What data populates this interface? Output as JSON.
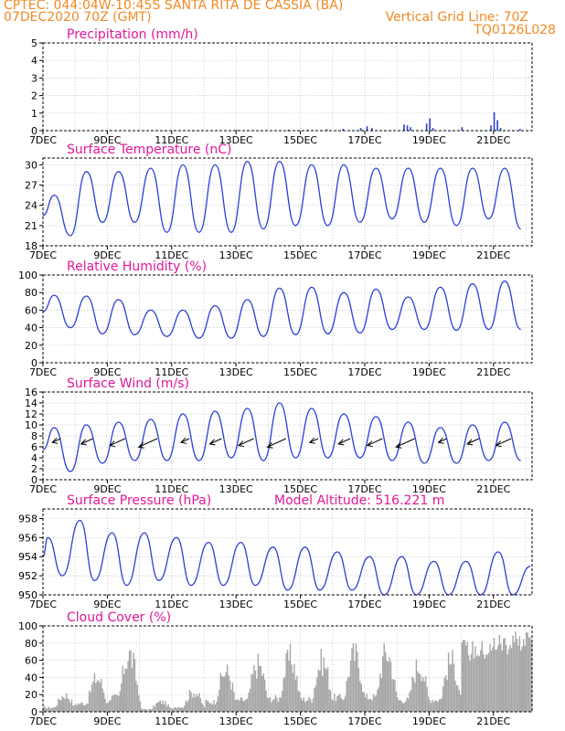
{
  "header": {
    "line1": "CPTEC:   044:04W-10:45S   SANTA RITA DE CASSIA (BA)",
    "line2_left": "07DEC2020 70Z (GMT)",
    "line2_right": "Vertical Grid Line: 70Z",
    "line3_right": "TQ0126L028"
  },
  "colors": {
    "header": "#f08a24",
    "title": "#e0189a",
    "line": "#2b3fd6",
    "cloud": "#a6a6a6",
    "wind_arrow": "#000000"
  },
  "chart_data": [
    {
      "type": "bar",
      "title": "Precipitation (mm/h)",
      "xlabel_ticks": [
        "7DEC",
        "9DEC",
        "11DEC",
        "13DEC",
        "15DEC",
        "17DEC",
        "19DEC",
        "21DEC"
      ],
      "x_range_days": [
        7,
        22.2
      ],
      "ylim": [
        0,
        5
      ],
      "yticks": [
        0,
        1,
        2,
        3,
        4,
        5
      ],
      "events": [
        {
          "day": 13.0,
          "value": 0.05
        },
        {
          "day": 14.6,
          "value": 0.06
        },
        {
          "day": 15.2,
          "value": 0.05
        },
        {
          "day": 15.8,
          "value": 0.08
        },
        {
          "day": 16.3,
          "value": 0.1
        },
        {
          "day": 16.85,
          "value": 0.15
        },
        {
          "day": 17.05,
          "value": 0.25
        },
        {
          "day": 17.2,
          "value": 0.15
        },
        {
          "day": 18.2,
          "value": 0.35
        },
        {
          "day": 18.3,
          "value": 0.3
        },
        {
          "day": 18.4,
          "value": 0.2
        },
        {
          "day": 18.9,
          "value": 0.4
        },
        {
          "day": 19.0,
          "value": 0.7
        },
        {
          "day": 19.1,
          "value": 0.15
        },
        {
          "day": 20.0,
          "value": 0.2
        },
        {
          "day": 20.9,
          "value": 0.3
        },
        {
          "day": 21.0,
          "value": 1.05
        },
        {
          "day": 21.1,
          "value": 0.6
        },
        {
          "day": 21.2,
          "value": 0.15
        },
        {
          "day": 21.8,
          "value": 0.1
        }
      ]
    },
    {
      "type": "line",
      "title": "Surface Temperature (nC)",
      "xlabel_ticks": [
        "7DEC",
        "9DEC",
        "11DEC",
        "13DEC",
        "15DEC",
        "17DEC",
        "19DEC",
        "21DEC"
      ],
      "x_range_days": [
        7,
        22.2
      ],
      "ylim": [
        18,
        31
      ],
      "yticks": [
        18,
        21,
        24,
        27,
        30
      ],
      "daily_min": [
        19.5,
        21.5,
        21.5,
        20.0,
        20.0,
        20.0,
        20.5,
        21.0,
        21.0,
        21.5,
        22.0,
        21.5,
        21.0,
        22.0,
        20.5
      ],
      "daily_max": [
        25.5,
        29.0,
        29.0,
        29.5,
        30.0,
        30.0,
        30.5,
        30.5,
        30.0,
        30.0,
        29.5,
        29.5,
        29.5,
        29.5,
        29.5,
        27.0
      ]
    },
    {
      "type": "line",
      "title": "Relative Humidity (%)",
      "xlabel_ticks": [
        "7DEC",
        "9DEC",
        "11DEC",
        "13DEC",
        "15DEC",
        "17DEC",
        "19DEC",
        "21DEC"
      ],
      "x_range_days": [
        7,
        22.2
      ],
      "ylim": [
        0,
        100
      ],
      "yticks": [
        0,
        20,
        40,
        60,
        80,
        100
      ],
      "daily_min": [
        40,
        33,
        32,
        30,
        28,
        28,
        30,
        32,
        33,
        34,
        38,
        38,
        37,
        38,
        38
      ],
      "daily_max": [
        77,
        76,
        72,
        60,
        60,
        65,
        72,
        85,
        86,
        80,
        84,
        75,
        86,
        90,
        93,
        60
      ]
    },
    {
      "type": "line",
      "title": "Surface Wind (m/s)",
      "xlabel_ticks": [
        "7DEC",
        "9DEC",
        "11DEC",
        "13DEC",
        "15DEC",
        "17DEC",
        "19DEC",
        "21DEC"
      ],
      "x_range_days": [
        7,
        22.2
      ],
      "ylim": [
        0,
        16
      ],
      "yticks": [
        0,
        2,
        4,
        6,
        8,
        10,
        12,
        14,
        16
      ],
      "daily_min": [
        1.5,
        3.0,
        3.5,
        3.5,
        3.5,
        4.0,
        3.5,
        4.0,
        4.0,
        4.0,
        3.5,
        3.0,
        3.0,
        3.5,
        3.5
      ],
      "daily_max": [
        9.5,
        10.0,
        10.5,
        11.0,
        12.0,
        12.5,
        13.0,
        14.0,
        13.0,
        12.0,
        11.5,
        10.5,
        9.5,
        10.0,
        10.5,
        9.0
      ],
      "arrow_direction": "toward-west-southwest"
    },
    {
      "type": "line",
      "title": "Surface Pressure (hPa)",
      "annotation": "Model Altitude: 516.221 m",
      "xlabel_ticks": [
        "7DEC",
        "9DEC",
        "11DEC",
        "13DEC",
        "15DEC",
        "17DEC",
        "19DEC",
        "21DEC"
      ],
      "x_range_days": [
        7,
        22.2
      ],
      "ylim": [
        950,
        959
      ],
      "yticks": [
        950,
        952,
        954,
        956,
        958
      ],
      "daily_max": [
        956.0,
        957.8,
        956.5,
        956.5,
        956.0,
        955.5,
        955.5,
        955.0,
        955.0,
        954.5,
        954.0,
        954.0,
        953.5,
        953.5,
        954.5,
        953.0
      ],
      "daily_min": [
        952.0,
        951.5,
        951.0,
        951.5,
        951.0,
        951.0,
        951.0,
        950.5,
        950.5,
        950.5,
        950.0,
        950.0,
        950.0,
        949.5,
        950.0
      ]
    },
    {
      "type": "bar",
      "title": "Cloud Cover (%)",
      "xlabel_ticks": [
        "7DEC",
        "9DEC",
        "11DEC",
        "13DEC",
        "15DEC",
        "17DEC",
        "19DEC",
        "21DEC"
      ],
      "x_range_days": [
        7,
        22.2
      ],
      "ylim": [
        0,
        100
      ],
      "yticks": [
        0,
        20,
        40,
        60,
        80,
        100
      ],
      "daily_peak": [
        25,
        50,
        85,
        15,
        30,
        60,
        70,
        80,
        75,
        85,
        88,
        70,
        75,
        85,
        95,
        100
      ]
    }
  ]
}
